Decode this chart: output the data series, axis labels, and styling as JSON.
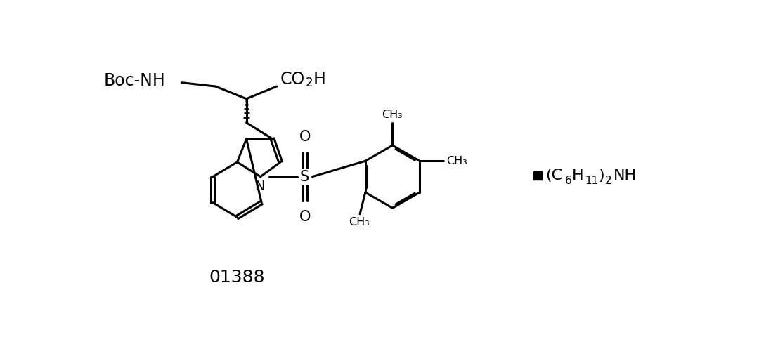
{
  "bg": "#ffffff",
  "lc": "#000000",
  "lw": 2.2,
  "fw": 11.07,
  "fh": 4.8,
  "dpi": 100,
  "xlim": [
    0,
    11.07
  ],
  "ylim": [
    0,
    4.8
  ]
}
